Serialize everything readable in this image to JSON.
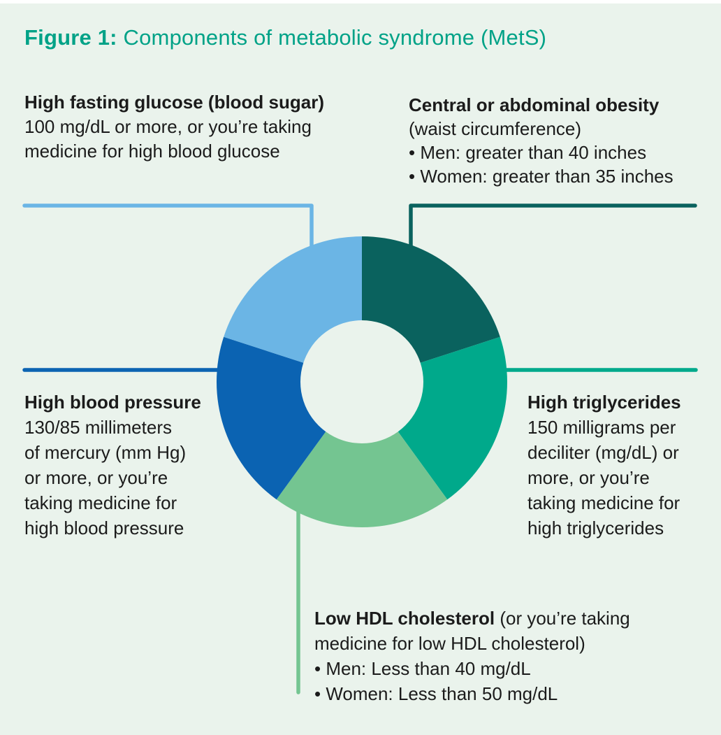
{
  "title": {
    "label": "Figure 1:",
    "rest": "Components of metabolic syndrome (MetS)"
  },
  "colors": {
    "background": "#eaf3ec",
    "title_teal": "#00a287",
    "text": "#1b1b1b",
    "obesity": "#0a625e",
    "triglycerides": "#00a98b",
    "hdl": "#74c591",
    "blood_pressure": "#0b63b2",
    "glucose": "#6bb5e5"
  },
  "chart_data": {
    "type": "pie",
    "subtype": "donut",
    "title": "Components of metabolic syndrome (MetS)",
    "legend_position": "callout-labels",
    "equal_segments": true,
    "segments": [
      {
        "label": "Central or abdominal obesity",
        "value": 20,
        "color_key": "obesity"
      },
      {
        "label": "High triglycerides",
        "value": 20,
        "color_key": "triglycerides"
      },
      {
        "label": "Low HDL cholesterol",
        "value": 20,
        "color_key": "hdl"
      },
      {
        "label": "High blood pressure",
        "value": 20,
        "color_key": "blood_pressure"
      },
      {
        "label": "High fasting glucose (blood sugar)",
        "value": 20,
        "color_key": "glucose"
      }
    ]
  },
  "labels": {
    "glucose": {
      "heading": "High fasting glucose (blood sugar)",
      "lines": [
        "100 mg/dL or more, or you’re taking",
        "medicine for high blood glucose"
      ]
    },
    "obesity": {
      "heading": "Central or abdominal obesity",
      "lines": [
        "(waist circumference)",
        "• Men: greater than 40 inches",
        "• Women: greater than 35 inches"
      ]
    },
    "blood_pressure": {
      "heading": "High blood pressure",
      "lines": [
        "130/85 millimeters",
        "of mercury (mm Hg)",
        "or more, or you’re",
        "taking medicine for",
        "high blood pressure"
      ]
    },
    "triglycerides": {
      "heading": "High triglycerides",
      "lines": [
        "150 milligrams per",
        "deciliter (mg/dL) or",
        "more, or you’re",
        "taking medicine for",
        "high triglycerides"
      ]
    },
    "hdl": {
      "heading": "Low HDL cholesterol",
      "heading_suffix": " (or you’re taking",
      "lines": [
        "medicine for low HDL cholesterol)",
        "• Men: Less than 40 mg/dL",
        "• Women: Less than 50 mg/dL"
      ]
    }
  }
}
